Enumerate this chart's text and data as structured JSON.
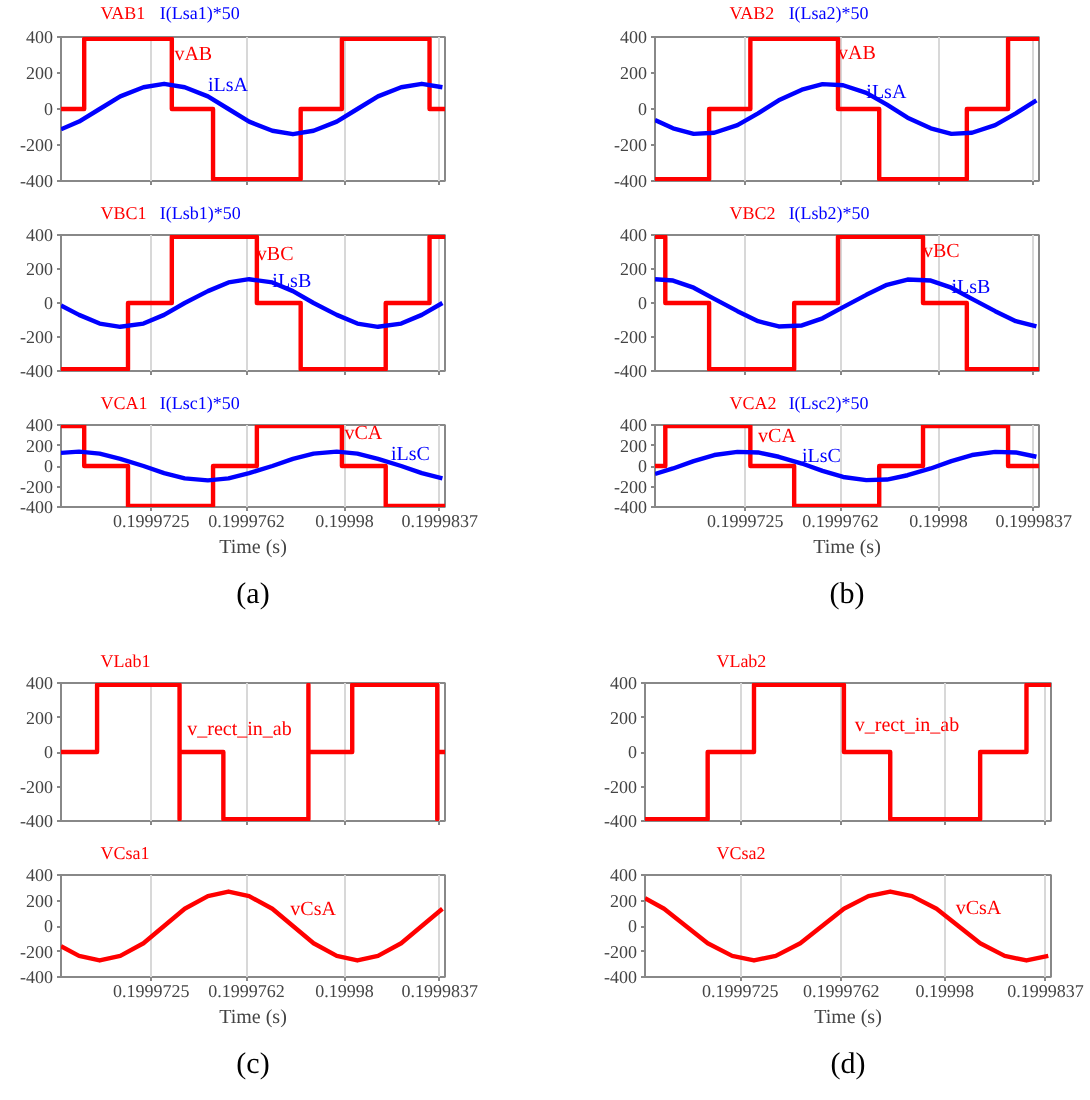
{
  "chart_data": [
    {
      "type": "line",
      "xlim": [
        0.199969,
        0.1999839
      ],
      "xticks": [
        0.1999725,
        0.1999762,
        0.19998,
        0.1999837
      ],
      "ylim": [
        -400,
        400
      ],
      "yticks": [
        -400,
        -200,
        0,
        200,
        400
      ],
      "grid": "x",
      "tick_labels": "y",
      "series": [
        {
          "name": "VAB1",
          "type": "step",
          "color": "#ff0000",
          "x": [
            0.199969,
            0.1999699,
            0.1999733,
            0.1999749,
            0.1999783,
            0.1999799,
            0.1999833,
            0.1999839
          ],
          "values": [
            0,
            390,
            0,
            -390,
            0,
            390,
            0,
            0
          ]
        },
        {
          "name": "I(Lsa1)*50",
          "type": "line",
          "color": "#0000ff",
          "x": [
            0.199969,
            0.1999697,
            0.1999705,
            0.1999713,
            0.1999722,
            0.199973,
            0.1999738,
            0.1999747,
            0.1999755,
            0.1999763,
            0.1999772,
            0.199978,
            0.1999788,
            0.1999797,
            0.1999805,
            0.1999813,
            0.1999822,
            0.199983,
            0.1999838
          ],
          "values": [
            -113,
            -70,
            0,
            70,
            121,
            140,
            121,
            70,
            0,
            -70,
            -121,
            -140,
            -121,
            -70,
            0,
            70,
            121,
            140,
            121
          ]
        }
      ],
      "annotations": [
        {
          "text": "vAB",
          "x": 0.1999734,
          "y": 300
        },
        {
          "text": "iLsA",
          "x": 0.1999747,
          "y": 130
        }
      ]
    },
    {
      "type": "line",
      "xlim": [
        0.199969,
        0.1999839
      ],
      "xticks": [
        0.1999725,
        0.1999762,
        0.19998,
        0.1999837
      ],
      "ylim": [
        -400,
        400
      ],
      "yticks": [
        -400,
        -200,
        0,
        200,
        400
      ],
      "grid": "x",
      "tick_labels": "y",
      "series": [
        {
          "name": "VBC1",
          "type": "step",
          "color": "#ff0000",
          "x": [
            0.199969,
            0.1999716,
            0.1999733,
            0.1999766,
            0.1999783,
            0.1999816,
            0.1999833,
            0.1999839
          ],
          "values": [
            -390,
            0,
            390,
            0,
            -390,
            0,
            390,
            390
          ]
        },
        {
          "name": "I(Lsb1)*50",
          "type": "line",
          "color": "#0000ff",
          "x": [
            0.199969,
            0.1999697,
            0.1999705,
            0.1999713,
            0.1999722,
            0.199973,
            0.1999738,
            0.1999747,
            0.1999755,
            0.1999763,
            0.1999772,
            0.199978,
            0.1999788,
            0.1999797,
            0.1999805,
            0.1999813,
            0.1999822,
            0.199983,
            0.1999838
          ],
          "values": [
            -15,
            -70,
            -121,
            -140,
            -121,
            -70,
            0,
            70,
            121,
            140,
            121,
            70,
            0,
            -70,
            -121,
            -140,
            -121,
            -70,
            0
          ]
        }
      ],
      "annotations": [
        {
          "text": "vBC",
          "x": 0.1999766,
          "y": 284
        },
        {
          "text": "iLsB",
          "x": 0.1999772,
          "y": 121
        }
      ]
    },
    {
      "type": "line",
      "xlim": [
        0.199969,
        0.1999839
      ],
      "xticks": [
        0.1999725,
        0.1999762,
        0.19998,
        0.1999837
      ],
      "ylim": [
        -400,
        400
      ],
      "yticks": [
        -400,
        -200,
        0,
        200,
        400
      ],
      "grid": "x",
      "xlabel": "Time (s)",
      "series": [
        {
          "name": "VCA1",
          "type": "step",
          "color": "#ff0000",
          "x": [
            0.199969,
            0.1999699,
            0.1999716,
            0.1999749,
            0.1999766,
            0.1999799,
            0.1999816,
            0.1999839
          ],
          "values": [
            390,
            0,
            -390,
            0,
            390,
            0,
            -390,
            -390
          ]
        },
        {
          "name": "I(Lsc1)*50",
          "type": "line",
          "color": "#0000ff",
          "x": [
            0.199969,
            0.1999697,
            0.1999705,
            0.1999713,
            0.1999722,
            0.199973,
            0.1999738,
            0.1999747,
            0.1999755,
            0.1999763,
            0.1999772,
            0.199978,
            0.1999788,
            0.1999797,
            0.1999805,
            0.1999813,
            0.1999822,
            0.199983,
            0.1999838
          ],
          "values": [
            128,
            140,
            121,
            70,
            0,
            -70,
            -121,
            -140,
            -121,
            -70,
            0,
            70,
            121,
            140,
            121,
            70,
            0,
            -70,
            -121
          ]
        }
      ],
      "annotations": [
        {
          "text": "vCA",
          "x": 0.19998,
          "y": 310
        },
        {
          "text": "iLsC",
          "x": 0.1999818,
          "y": 110
        },
        "(a)"
      ]
    },
    {
      "type": "line",
      "xlim": [
        0.199969,
        0.1999839
      ],
      "xticks": [
        0.1999725,
        0.1999762,
        0.19998,
        0.1999837
      ],
      "ylim": [
        -400,
        400
      ],
      "yticks": [
        -400,
        -200,
        0,
        200,
        400
      ],
      "grid": "x",
      "tick_labels": "y",
      "series": [
        {
          "name": "VAB2",
          "type": "step",
          "color": "#ff0000",
          "x": [
            0.199969,
            0.1999711,
            0.1999727,
            0.1999761,
            0.1999777,
            0.1999811,
            0.1999827,
            0.1999839
          ],
          "values": [
            -390,
            0,
            390,
            0,
            -390,
            0,
            390,
            390
          ]
        },
        {
          "name": "I(Lsa2)*50",
          "type": "line",
          "color": "#0000ff",
          "x": [
            0.199969,
            0.1999697,
            0.1999705,
            0.1999713,
            0.1999722,
            0.199973,
            0.1999738,
            0.1999747,
            0.1999755,
            0.1999763,
            0.1999772,
            0.199978,
            0.1999788,
            0.1999797,
            0.1999805,
            0.1999813,
            0.1999822,
            0.199983,
            0.1999838
          ],
          "values": [
            -61,
            -107,
            -138,
            -132,
            -90,
            -24,
            48,
            107,
            138,
            132,
            90,
            24,
            -48,
            -107,
            -138,
            -132,
            -90,
            -24,
            48
          ]
        }
      ],
      "annotations": [
        {
          "text": "vAB",
          "x": 0.1999761,
          "y": 305
        },
        {
          "text": "iLsA",
          "x": 0.1999772,
          "y": 90
        }
      ]
    },
    {
      "type": "line",
      "xlim": [
        0.199969,
        0.1999839
      ],
      "xticks": [
        0.1999725,
        0.1999762,
        0.19998,
        0.1999837
      ],
      "ylim": [
        -400,
        400
      ],
      "yticks": [
        -400,
        -200,
        0,
        200,
        400
      ],
      "grid": "x",
      "tick_labels": "y",
      "series": [
        {
          "name": "VBC2",
          "type": "step",
          "color": "#ff0000",
          "x": [
            0.199969,
            0.1999694,
            0.1999711,
            0.1999744,
            0.1999761,
            0.1999794,
            0.1999811,
            0.1999839
          ],
          "values": [
            390,
            0,
            -390,
            0,
            390,
            0,
            -390,
            -390
          ]
        },
        {
          "name": "I(Lsb2)*50",
          "type": "line",
          "color": "#0000ff",
          "x": [
            0.199969,
            0.1999697,
            0.1999705,
            0.1999713,
            0.1999722,
            0.199973,
            0.1999738,
            0.1999747,
            0.1999755,
            0.1999763,
            0.1999772,
            0.199978,
            0.1999788,
            0.1999797,
            0.1999805,
            0.1999813,
            0.1999822,
            0.199983,
            0.1999838
          ],
          "values": [
            140,
            132,
            90,
            24,
            -48,
            -107,
            -138,
            -132,
            -90,
            -24,
            48,
            107,
            138,
            132,
            90,
            24,
            -48,
            -107,
            -138
          ]
        }
      ],
      "annotations": [
        {
          "text": "vBC",
          "x": 0.1999794,
          "y": 300
        },
        {
          "text": "iLsB",
          "x": 0.1999805,
          "y": 90
        }
      ]
    },
    {
      "type": "line",
      "xlim": [
        0.199969,
        0.1999839
      ],
      "xticks": [
        0.1999725,
        0.1999762,
        0.19998,
        0.1999837
      ],
      "ylim": [
        -400,
        400
      ],
      "yticks": [
        -400,
        -200,
        0,
        200,
        400
      ],
      "grid": "x",
      "xlabel": "Time (s)",
      "series": [
        {
          "name": "VCA2",
          "type": "step",
          "color": "#ff0000",
          "x": [
            0.199969,
            0.1999694,
            0.1999727,
            0.1999744,
            0.1999777,
            0.1999794,
            0.1999827,
            0.1999839
          ],
          "values": [
            0,
            390,
            0,
            -390,
            0,
            390,
            0,
            0
          ]
        },
        {
          "name": "I(Lsc2)*50",
          "type": "line",
          "color": "#0000ff",
          "x": [
            0.199969,
            0.1999697,
            0.1999705,
            0.1999713,
            0.1999722,
            0.199973,
            0.1999738,
            0.1999747,
            0.1999755,
            0.1999763,
            0.1999772,
            0.199978,
            0.1999788,
            0.1999797,
            0.1999805,
            0.1999813,
            0.1999822,
            0.199983,
            0.1999838
          ],
          "values": [
            -78,
            -24,
            48,
            107,
            138,
            132,
            90,
            24,
            -48,
            -107,
            -138,
            -132,
            -90,
            -24,
            48,
            107,
            138,
            132,
            90
          ]
        }
      ],
      "annotations": [
        {
          "text": "vCA",
          "x": 0.199973,
          "y": 285
        },
        {
          "text": "iLsC",
          "x": 0.1999747,
          "y": 85
        },
        "(b)"
      ]
    },
    {
      "type": "line",
      "xlim": [
        0.199969,
        0.1999839
      ],
      "xticks": [
        0.1999725,
        0.1999762,
        0.19998,
        0.1999837
      ],
      "ylim": [
        -400,
        400
      ],
      "yticks": [
        -400,
        -200,
        0,
        200,
        400
      ],
      "grid": "x",
      "tick_labels": "y",
      "series": [
        {
          "name": "VLab1",
          "type": "step",
          "color": "#ff0000",
          "x": [
            0.199969,
            0.1999704,
            0.1999736,
            0.1999736,
            0.1999753,
            0.1999786,
            0.1999786,
            0.1999803,
            0.1999836,
            0.1999836,
            0.1999839
          ],
          "values": [
            0,
            390,
            -390,
            0,
            -390,
            390,
            0,
            390,
            -390,
            0,
            0
          ]
        }
      ],
      "annotations": [
        {
          "text": "v_rect_in_ab",
          "x": 0.1999739,
          "y": 127
        }
      ]
    },
    {
      "type": "line",
      "xlim": [
        0.199969,
        0.1999839
      ],
      "xticks": [
        0.1999725,
        0.1999762,
        0.19998,
        0.1999837
      ],
      "ylim": [
        -400,
        400
      ],
      "yticks": [
        -400,
        -200,
        0,
        200,
        400
      ],
      "grid": "x",
      "xlabel": "Time (s)",
      "series": [
        {
          "name": "VCsa1",
          "type": "line",
          "color": "#ff0000",
          "x": [
            0.199969,
            0.1999697,
            0.1999705,
            0.1999713,
            0.1999722,
            0.199973,
            0.1999738,
            0.1999747,
            0.1999755,
            0.1999763,
            0.1999772,
            0.199978,
            0.1999788,
            0.1999797,
            0.1999805,
            0.1999813,
            0.1999822,
            0.199983,
            0.1999838
          ],
          "values": [
            -159,
            -234,
            -270,
            -234,
            -135,
            0,
            135,
            234,
            270,
            234,
            135,
            0,
            -135,
            -234,
            -270,
            -234,
            -135,
            0,
            135
          ]
        }
      ],
      "annotations": [
        {
          "text": "vCsA",
          "x": 0.1999779,
          "y": 123
        },
        "(c)"
      ]
    },
    {
      "type": "line",
      "xlim": [
        0.199969,
        0.1999839
      ],
      "xticks": [
        0.1999725,
        0.1999762,
        0.19998,
        0.1999837
      ],
      "ylim": [
        -400,
        400
      ],
      "yticks": [
        -400,
        -200,
        0,
        200,
        400
      ],
      "grid": "x",
      "tick_labels": "y",
      "series": [
        {
          "name": "VLab2",
          "type": "step",
          "color": "#ff0000",
          "x": [
            0.199969,
            0.1999713,
            0.199973,
            0.1999763,
            0.199978,
            0.1999813,
            0.199983,
            0.1999839
          ],
          "values": [
            -390,
            0,
            390,
            0,
            -390,
            0,
            390,
            390
          ]
        }
      ],
      "annotations": [
        {
          "text": "v_rect_in_ab",
          "x": 0.1999767,
          "y": 149
        }
      ]
    },
    {
      "type": "line",
      "xlim": [
        0.199969,
        0.1999839
      ],
      "xticks": [
        0.1999725,
        0.1999762,
        0.19998,
        0.1999837
      ],
      "ylim": [
        -400,
        400
      ],
      "yticks": [
        -400,
        -200,
        0,
        200,
        400
      ],
      "grid": "x",
      "xlabel": "Time (s)",
      "series": [
        {
          "name": "VCsa2",
          "type": "line",
          "color": "#ff0000",
          "x": [
            0.199969,
            0.1999697,
            0.1999705,
            0.1999713,
            0.1999722,
            0.199973,
            0.1999738,
            0.1999747,
            0.1999755,
            0.1999763,
            0.1999772,
            0.199978,
            0.1999788,
            0.1999797,
            0.1999805,
            0.1999813,
            0.1999822,
            0.199983,
            0.1999838
          ],
          "values": [
            218,
            135,
            0,
            -135,
            -234,
            -270,
            -234,
            -135,
            0,
            135,
            234,
            270,
            234,
            135,
            0,
            -135,
            -234,
            -270,
            -234
          ]
        }
      ],
      "annotations": [
        {
          "text": "vCsA",
          "x": 0.1999804,
          "y": 130
        },
        "(d)"
      ]
    }
  ]
}
